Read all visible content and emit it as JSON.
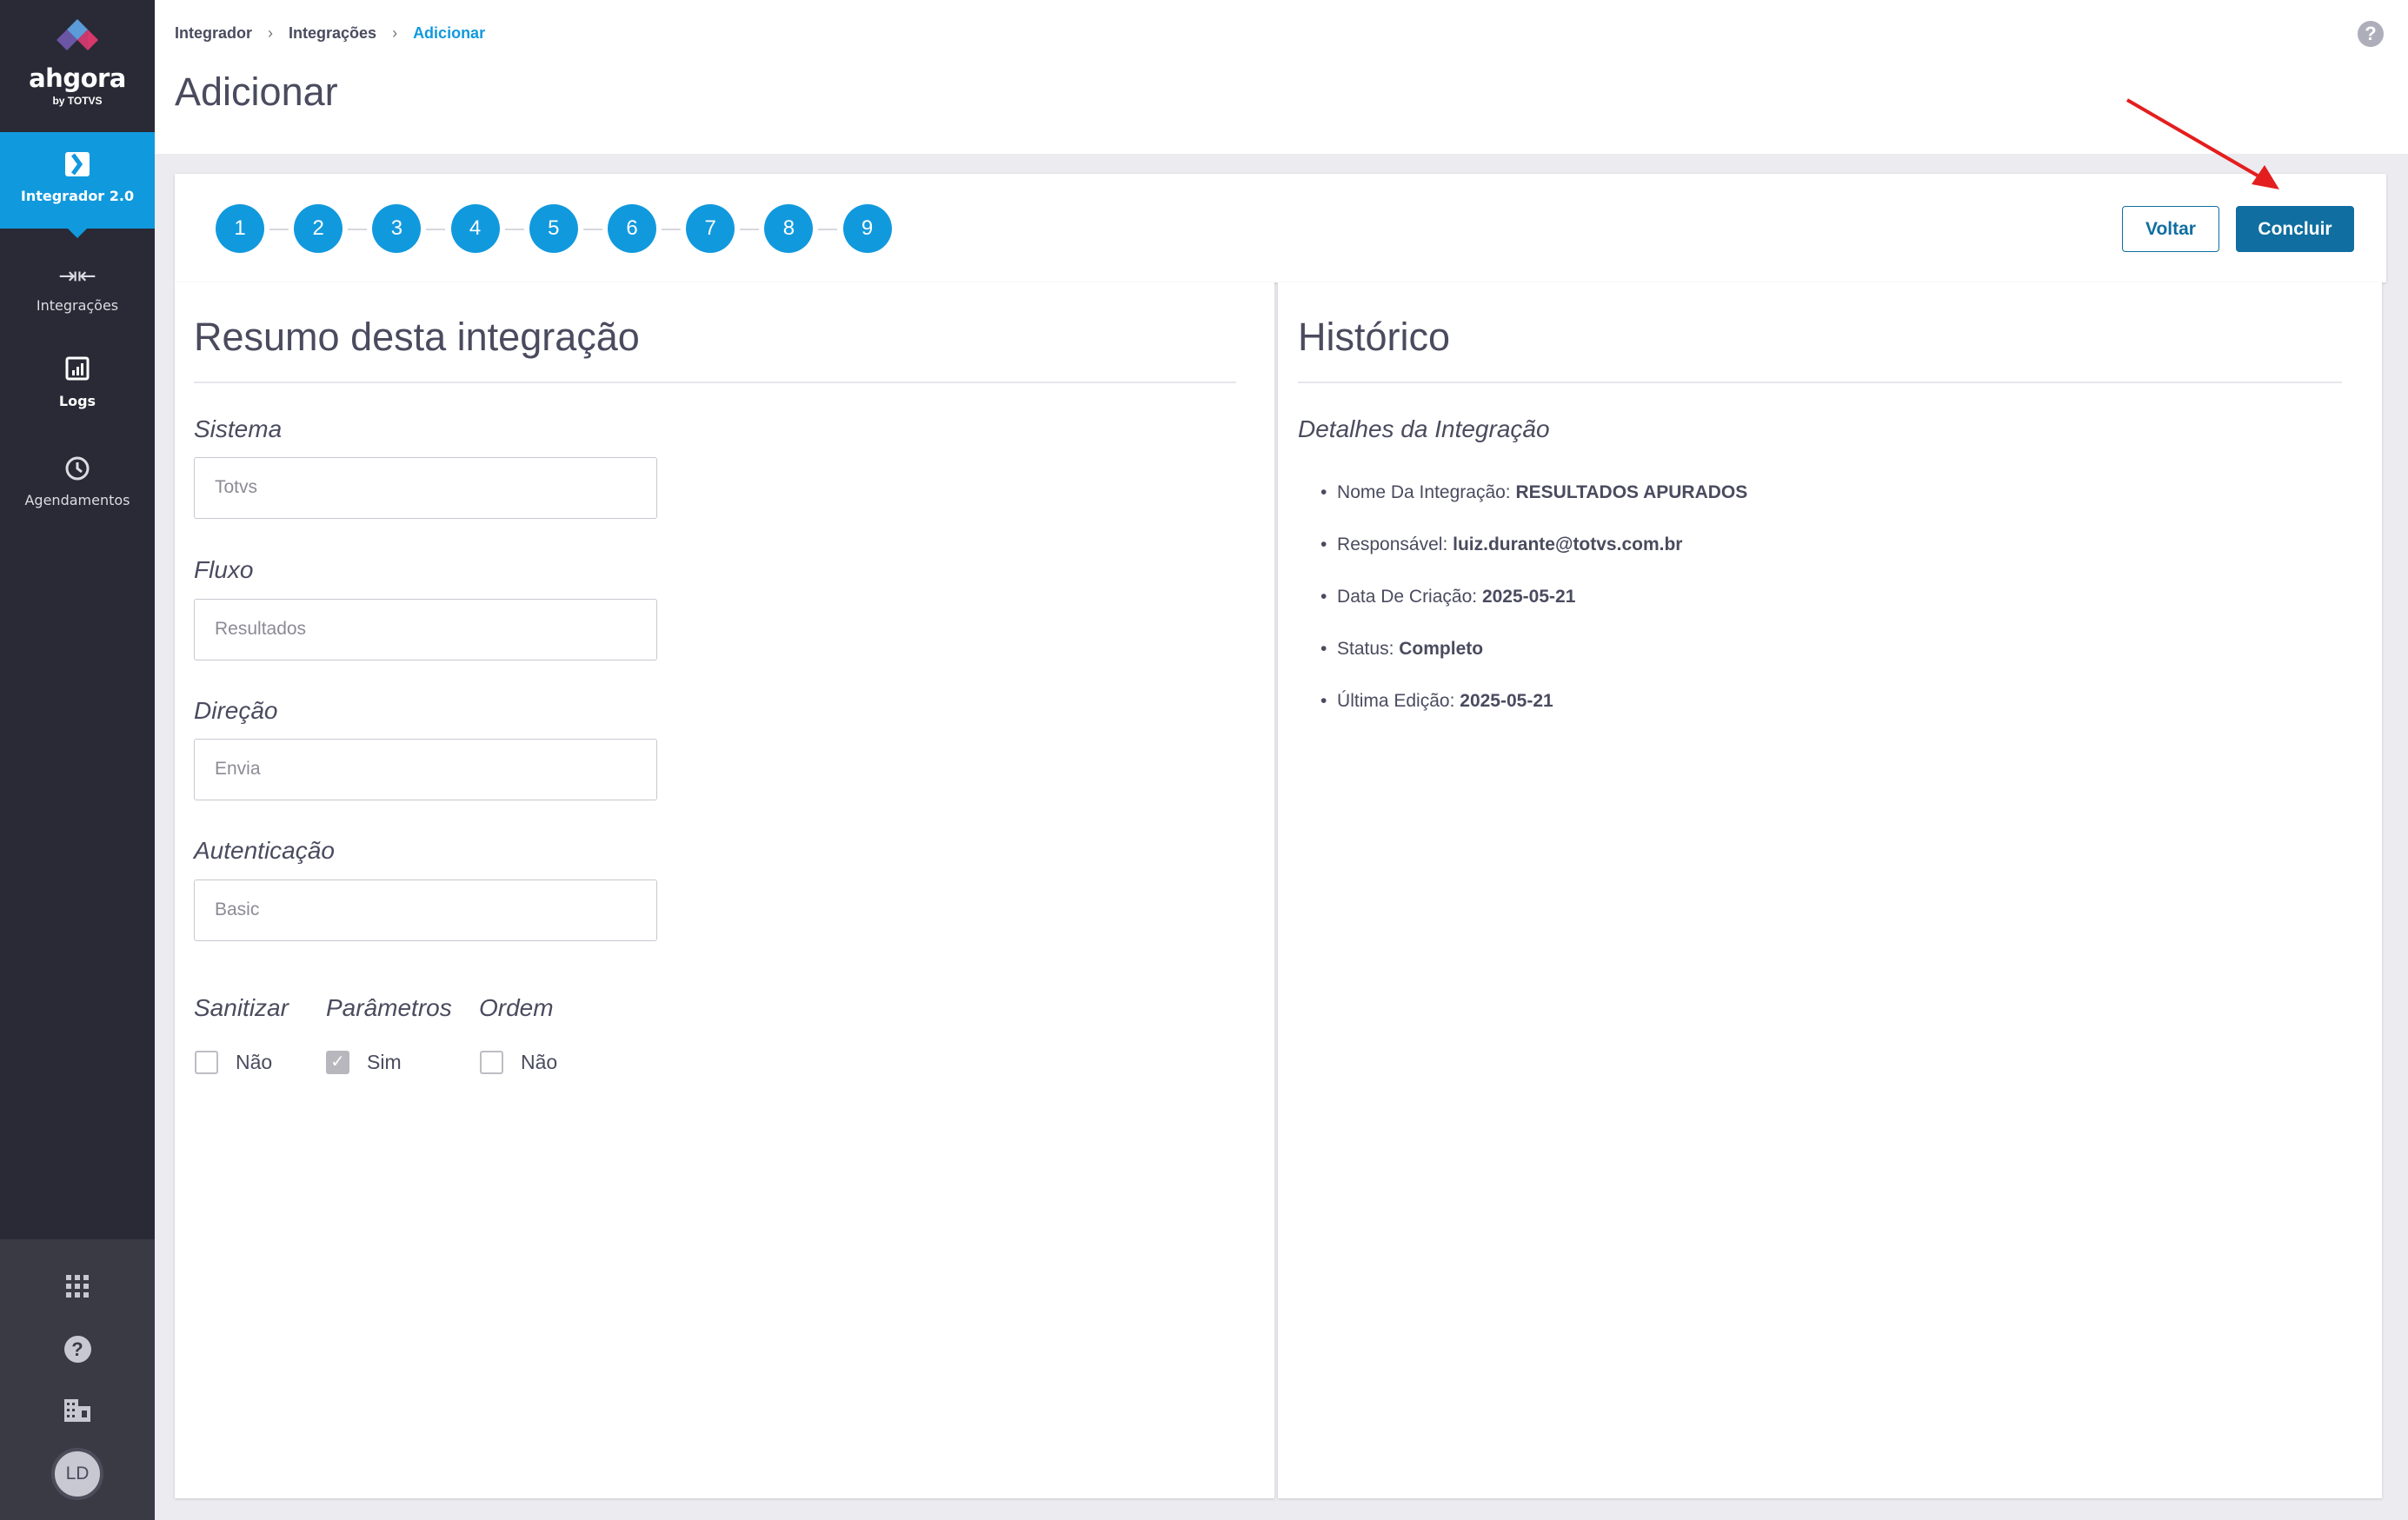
{
  "sidebar": {
    "logo": {
      "word": "ahgora",
      "by": "by TOTVS"
    },
    "items": [
      {
        "label": "Integrador 2.0",
        "icon": "integrator-icon",
        "active": true
      },
      {
        "label": "Integrações",
        "icon": "arrows-exchange-icon"
      },
      {
        "label": "Logs",
        "icon": "chart-report-icon"
      },
      {
        "label": "Agendamentos",
        "icon": "clock-icon"
      }
    ],
    "bottom": {
      "apps_icon": "apps-grid-icon",
      "help_icon": "help-icon",
      "company_icon": "building-icon",
      "avatar": "LD"
    }
  },
  "header": {
    "breadcrumb": [
      "Integrador",
      "Integrações",
      "Adicionar"
    ],
    "title": "Adicionar"
  },
  "stepper": {
    "steps": [
      "1",
      "2",
      "3",
      "4",
      "5",
      "6",
      "7",
      "8",
      "9"
    ],
    "back_label": "Voltar",
    "finish_label": "Concluir",
    "accent": "#1199dd",
    "button_color": "#106ea0"
  },
  "summary": {
    "title": "Resumo desta integração",
    "fields": [
      {
        "label": "Sistema",
        "value": "Totvs"
      },
      {
        "label": "Fluxo",
        "value": "Resultados"
      },
      {
        "label": "Direção",
        "value": "Envia"
      },
      {
        "label": "Autenticação",
        "value": "Basic"
      }
    ],
    "checks": [
      {
        "label": "Sanitizar",
        "value": "Não",
        "checked": false
      },
      {
        "label": "Parâmetros",
        "value": "Sim",
        "checked": true
      },
      {
        "label": "Ordem",
        "value": "Não",
        "checked": false
      }
    ]
  },
  "history": {
    "title": "Histórico",
    "subtitle": "Detalhes da Integração",
    "items": [
      {
        "key": "Nome Da Integração:",
        "value": "RESULTADOS APURADOS"
      },
      {
        "key": "Responsável:",
        "value": "luiz.durante@totvs.com.br"
      },
      {
        "key": "Data De Criação:",
        "value": "2025-05-21"
      },
      {
        "key": "Status:",
        "value": "Completo"
      },
      {
        "key": "Última Edição:",
        "value": "2025-05-21"
      }
    ]
  },
  "annotation": {
    "arrow_color": "#e41e1e"
  }
}
